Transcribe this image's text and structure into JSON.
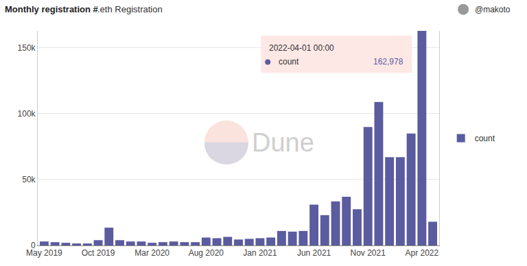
{
  "chart_data": {
    "type": "bar",
    "title": "Monthly registration #",
    "subtitle": ".eth Registration",
    "author": "@makoto",
    "watermark": "Dune",
    "categories": [
      "May 2019",
      null,
      null,
      null,
      null,
      "Oct 2019",
      null,
      null,
      null,
      null,
      "Mar 2020",
      null,
      null,
      null,
      null,
      "Aug 2020",
      null,
      null,
      null,
      null,
      "Jan 2021",
      null,
      null,
      null,
      null,
      "Jun 2021",
      null,
      null,
      null,
      null,
      "Nov 2021",
      null,
      null,
      null,
      null,
      "Apr 2022",
      null
    ],
    "series": [
      {
        "name": "count",
        "color": "#5b5b9f",
        "values": [
          3000,
          2500,
          2000,
          1500,
          1500,
          4000,
          13500,
          4000,
          3000,
          3000,
          2000,
          2500,
          3000,
          2500,
          2500,
          6000,
          5500,
          6500,
          4500,
          5000,
          5500,
          6000,
          11000,
          10500,
          11000,
          31000,
          23000,
          33500,
          37000,
          27500,
          90000,
          109000,
          67000,
          67000,
          85000,
          162978,
          18000
        ]
      }
    ],
    "ylim": [
      0,
      163000
    ],
    "yticks": [
      0,
      {
        "value": 50000,
        "label": "50k"
      },
      {
        "value": 100000,
        "label": "100k"
      },
      {
        "value": 150000,
        "label": "150k"
      }
    ],
    "grid": true,
    "legend": "right",
    "tooltip": {
      "title": "2022-04-01 00:00",
      "label": "count",
      "value": 162978,
      "value_label": "162,978"
    }
  }
}
